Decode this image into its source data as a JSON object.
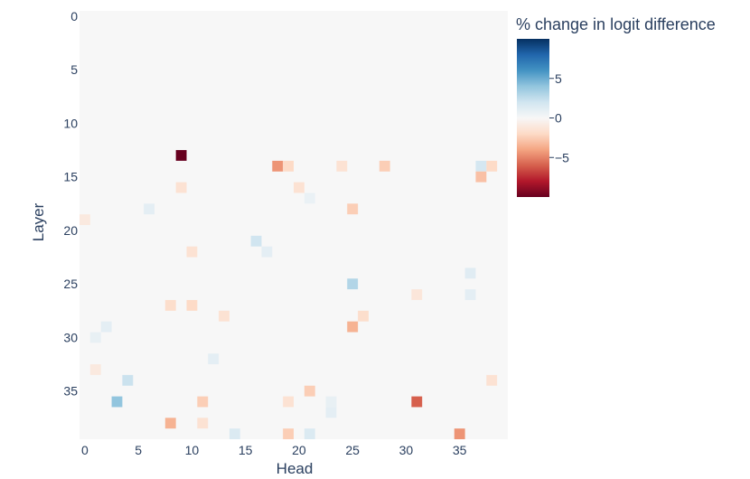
{
  "chart_data": {
    "type": "heatmap",
    "xlabel": "Head",
    "ylabel": "Layer",
    "x_range": [
      0,
      39
    ],
    "y_range": [
      0,
      39
    ],
    "x_ticks": [
      "0",
      "5",
      "10",
      "15",
      "20",
      "25",
      "30",
      "35"
    ],
    "y_ticks": [
      "0",
      "5",
      "10",
      "15",
      "20",
      "25",
      "30",
      "35"
    ],
    "colorbar": {
      "title": "% change in logit difference",
      "range": [
        -10,
        10
      ],
      "ticks": [
        "5",
        "0",
        "−5"
      ],
      "colorscale": [
        "#67001f",
        "#b2182b",
        "#d6604d",
        "#f4a582",
        "#fddbc7",
        "#f7f7f7",
        "#d1e5f0",
        "#92c5de",
        "#4393c3",
        "#2166ac",
        "#053061"
      ]
    },
    "background_value": 0,
    "cells": [
      {
        "layer": 13,
        "head": 9,
        "value": -10
      },
      {
        "layer": 14,
        "head": 18,
        "value": -4.5
      },
      {
        "layer": 14,
        "head": 19,
        "value": -2
      },
      {
        "layer": 14,
        "head": 24,
        "value": -1.5
      },
      {
        "layer": 14,
        "head": 28,
        "value": -2.5
      },
      {
        "layer": 14,
        "head": 37,
        "value": 1.8
      },
      {
        "layer": 14,
        "head": 38,
        "value": -2
      },
      {
        "layer": 15,
        "head": 37,
        "value": -3
      },
      {
        "layer": 16,
        "head": 9,
        "value": -1.5
      },
      {
        "layer": 16,
        "head": 20,
        "value": -1.5
      },
      {
        "layer": 17,
        "head": 21,
        "value": 0.7
      },
      {
        "layer": 18,
        "head": 25,
        "value": -2.5
      },
      {
        "layer": 18,
        "head": 6,
        "value": 1
      },
      {
        "layer": 19,
        "head": 0,
        "value": -1
      },
      {
        "layer": 21,
        "head": 16,
        "value": 2
      },
      {
        "layer": 22,
        "head": 17,
        "value": 1
      },
      {
        "layer": 22,
        "head": 10,
        "value": -1.5
      },
      {
        "layer": 24,
        "head": 36,
        "value": 1.2
      },
      {
        "layer": 25,
        "head": 25,
        "value": 3
      },
      {
        "layer": 26,
        "head": 36,
        "value": 1
      },
      {
        "layer": 26,
        "head": 31,
        "value": -1.2
      },
      {
        "layer": 27,
        "head": 8,
        "value": -1.8
      },
      {
        "layer": 27,
        "head": 10,
        "value": -2
      },
      {
        "layer": 28,
        "head": 26,
        "value": -1.8
      },
      {
        "layer": 28,
        "head": 13,
        "value": -1.5
      },
      {
        "layer": 29,
        "head": 25,
        "value": -3.5
      },
      {
        "layer": 29,
        "head": 2,
        "value": 1
      },
      {
        "layer": 30,
        "head": 1,
        "value": 0.8
      },
      {
        "layer": 32,
        "head": 12,
        "value": 1
      },
      {
        "layer": 33,
        "head": 1,
        "value": -1
      },
      {
        "layer": 34,
        "head": 4,
        "value": 2.2
      },
      {
        "layer": 34,
        "head": 38,
        "value": -1.5
      },
      {
        "layer": 35,
        "head": 21,
        "value": -2.5
      },
      {
        "layer": 36,
        "head": 3,
        "value": 4
      },
      {
        "layer": 36,
        "head": 11,
        "value": -2.5
      },
      {
        "layer": 36,
        "head": 19,
        "value": -1.5
      },
      {
        "layer": 36,
        "head": 31,
        "value": -6
      },
      {
        "layer": 36,
        "head": 23,
        "value": 0.8
      },
      {
        "layer": 37,
        "head": 23,
        "value": 1
      },
      {
        "layer": 38,
        "head": 8,
        "value": -3.5
      },
      {
        "layer": 38,
        "head": 11,
        "value": -1.5
      },
      {
        "layer": 39,
        "head": 14,
        "value": 1.5
      },
      {
        "layer": 39,
        "head": 19,
        "value": -2.5
      },
      {
        "layer": 39,
        "head": 21,
        "value": 1.5
      },
      {
        "layer": 39,
        "head": 35,
        "value": -4.5
      }
    ]
  }
}
